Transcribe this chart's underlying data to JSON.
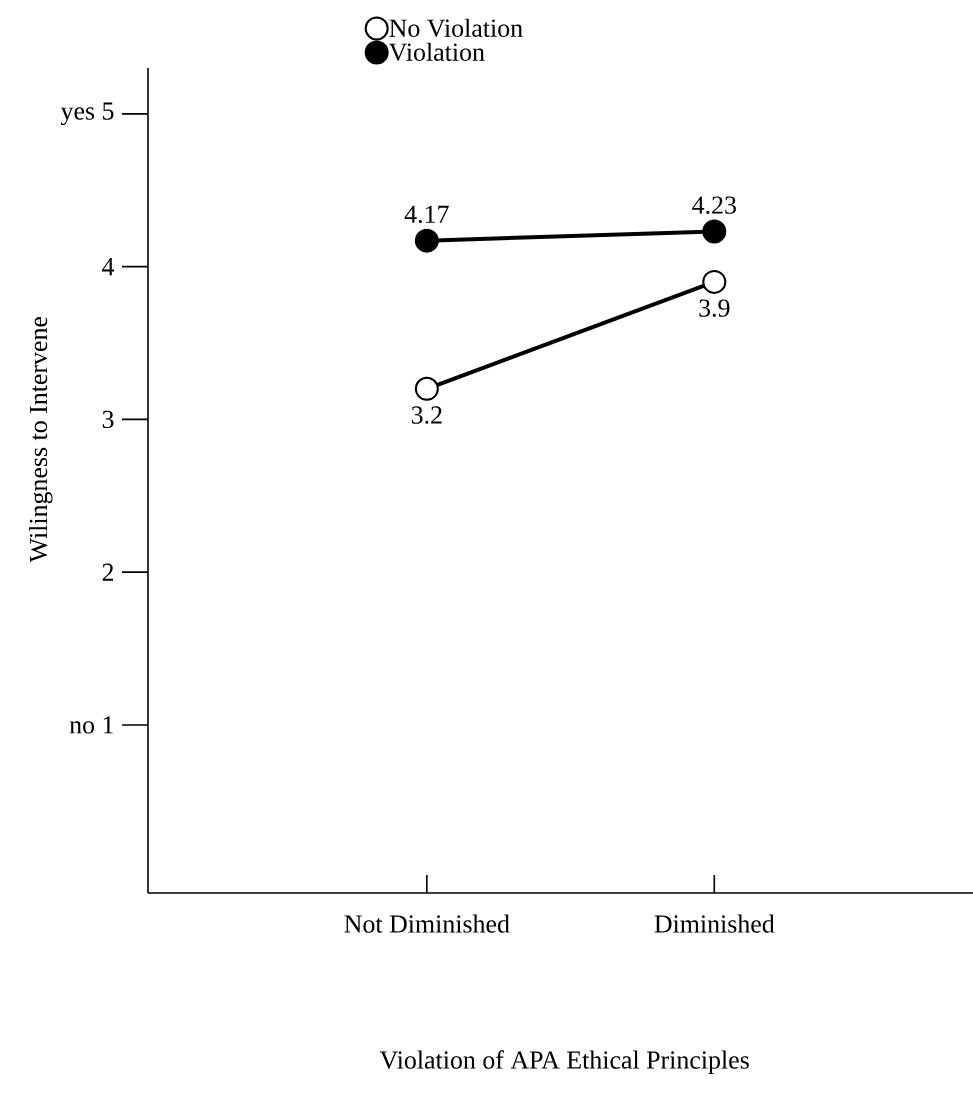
{
  "chart_data": {
    "type": "line",
    "xlabel": "Violation of APA Ethical Principles",
    "ylabel": "Wilingness to Intervene",
    "categories": [
      "Not Diminished",
      "Diminished"
    ],
    "series": [
      {
        "name": "No Violation",
        "color": "#ffffff",
        "values": [
          3.2,
          3.9
        ]
      },
      {
        "name": "Violation",
        "color": "#000000",
        "values": [
          4.17,
          4.23
        ]
      }
    ],
    "ylim": [
      -0.1,
      5.3
    ],
    "yticks": [
      {
        "value": 5,
        "label": "yes 5"
      },
      4,
      3,
      2,
      {
        "value": 1,
        "label": "no 1"
      }
    ],
    "data_labels": true,
    "legend": "top",
    "marker": "circle",
    "grid": false
  }
}
